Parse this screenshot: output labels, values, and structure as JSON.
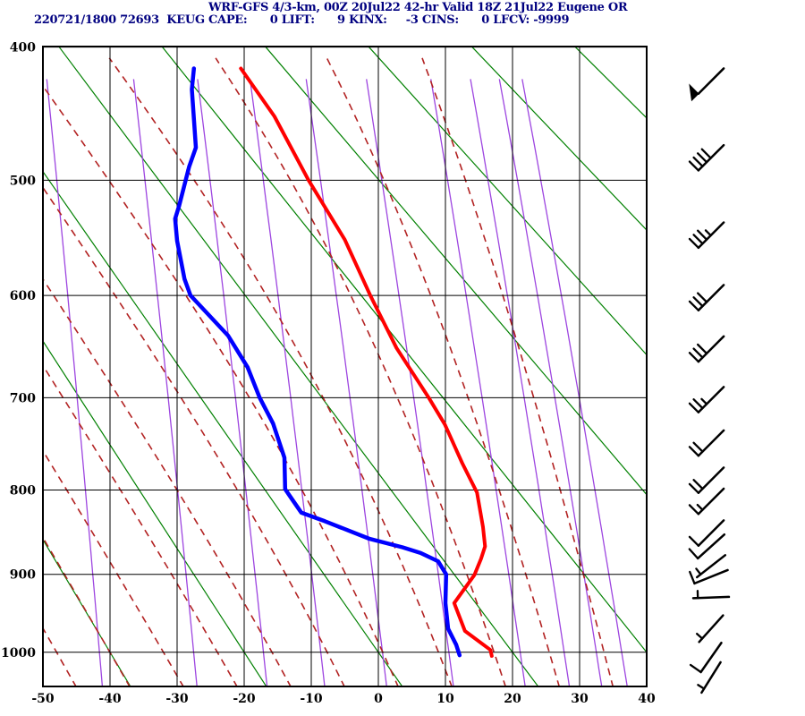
{
  "header": {
    "line1": "WRF-GFS 4/3-km, 00Z 20Jul22 42-hr Valid 18Z 21Jul22 Eugene OR",
    "line2_station": "220721/1800 72693  KEUG",
    "line2_indices": "CAPE:      0 LIFT:      9 KINX:     -3 CINS:      0 LFCV: -9999",
    "text_color": "#000080"
  },
  "chart_data": {
    "type": "line",
    "diagram": "stuve-sounding",
    "station": "KEUG",
    "valid": "18Z 21Jul22",
    "x_axis": {
      "label": "",
      "ticks_C": [
        -50,
        -40,
        -30,
        -20,
        -10,
        0,
        10,
        20,
        30,
        40
      ],
      "range_C": [
        -50,
        40
      ]
    },
    "y_axis": {
      "label": "",
      "ticks_hPa": [
        400,
        500,
        600,
        700,
        800,
        900,
        1000
      ],
      "range_hPa": [
        400,
        1047.6
      ],
      "scale": "p^0.2859"
    },
    "grid": true,
    "series": [
      {
        "name": "temperature",
        "color": "#ff0000",
        "units": [
          "hPa",
          "C"
        ],
        "points": [
          [
            415,
            -20.5
          ],
          [
            450,
            -15.5
          ],
          [
            500,
            -10.4
          ],
          [
            550,
            -5.0
          ],
          [
            600,
            -1.2
          ],
          [
            650,
            2.7
          ],
          [
            700,
            7.5
          ],
          [
            728,
            9.9
          ],
          [
            770,
            12.5
          ],
          [
            803,
            14.7
          ],
          [
            843,
            15.6
          ],
          [
            866,
            15.9
          ],
          [
            881,
            15.3
          ],
          [
            901,
            14.3
          ],
          [
            936,
            11.3
          ],
          [
            972,
            12.9
          ],
          [
            997,
            16.7
          ],
          [
            1005,
            16.9
          ]
        ]
      },
      {
        "name": "dewpoint",
        "color": "#0000ff",
        "units": [
          "hPa",
          "C"
        ],
        "points": [
          [
            415,
            -27.5
          ],
          [
            430,
            -27.8
          ],
          [
            474,
            -27.2
          ],
          [
            489,
            -28.2
          ],
          [
            521,
            -29.7
          ],
          [
            532,
            -30.3
          ],
          [
            551,
            -30.0
          ],
          [
            585,
            -28.9
          ],
          [
            600,
            -28.0
          ],
          [
            638,
            -22.4
          ],
          [
            669,
            -19.5
          ],
          [
            700,
            -17.7
          ],
          [
            727,
            -15.7
          ],
          [
            764,
            -14.0
          ],
          [
            799,
            -13.9
          ],
          [
            808,
            -13.1
          ],
          [
            826,
            -11.5
          ],
          [
            836,
            -8.0
          ],
          [
            857,
            -1.3
          ],
          [
            867,
            3.6
          ],
          [
            874,
            6.3
          ],
          [
            884,
            8.9
          ],
          [
            900,
            10.1
          ],
          [
            936,
            10.0
          ],
          [
            969,
            10.4
          ],
          [
            990,
            11.6
          ],
          [
            1004,
            12.1
          ]
        ]
      }
    ],
    "background": {
      "dry_adiabats_theta_K": [
        233.15,
        253.15,
        273.15,
        293.15,
        313.15,
        333.15,
        353.15,
        373.15,
        393.15,
        413.15
      ],
      "dry_adiabat_color": "#008000",
      "mixing_ratio_g_per_kg": [
        0.1,
        0.4,
        1,
        2,
        4,
        8,
        16,
        24,
        32,
        40
      ],
      "mixing_ratio_color": "#9d45e0",
      "moist_adiabats_thetaw_C": [
        -45,
        -37,
        -29,
        -21,
        -13,
        -5,
        3,
        11,
        19,
        27,
        35
      ],
      "moist_adiabat_color": "#b22222",
      "grid_color": "#000000"
    },
    "wind_barbs": {
      "color": "#000000",
      "barbs": [
        {
          "p": 424,
          "kt": 50,
          "from_deg": 225
        },
        {
          "p": 482,
          "kt": 40,
          "from_deg": 225
        },
        {
          "p": 546,
          "kt": 35,
          "from_deg": 225
        },
        {
          "p": 602,
          "kt": 30,
          "from_deg": 225
        },
        {
          "p": 651,
          "kt": 30,
          "from_deg": 225
        },
        {
          "p": 702,
          "kt": 25,
          "from_deg": 225
        },
        {
          "p": 748,
          "kt": 20,
          "from_deg": 225
        },
        {
          "p": 789,
          "kt": 20,
          "from_deg": 225
        },
        {
          "p": 813,
          "kt": 15,
          "from_deg": 225
        },
        {
          "p": 850,
          "kt": 10,
          "from_deg": 225
        },
        {
          "p": 866,
          "kt": 10,
          "from_deg": 228
        },
        {
          "p": 890,
          "kt": 5,
          "from_deg": 232
        },
        {
          "p": 903,
          "kt": 10,
          "from_deg": 248
        },
        {
          "p": 929,
          "kt": 5,
          "from_deg": 268
        },
        {
          "p": 969,
          "kt": 5,
          "from_deg": 222
        },
        {
          "p": 1007,
          "kt": 10,
          "from_deg": 215
        },
        {
          "p": 1034,
          "kt": 5,
          "from_deg": 212
        }
      ]
    }
  }
}
